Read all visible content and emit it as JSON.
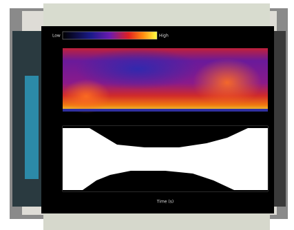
{
  "colorbar": {
    "low_label": "Low",
    "high_label": "High"
  },
  "x_axis": {
    "label": "Time (s)"
  }
}
